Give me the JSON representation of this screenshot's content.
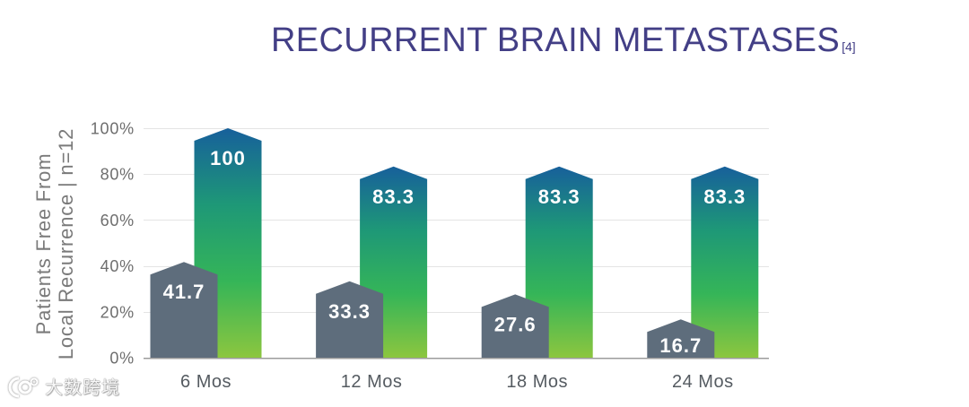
{
  "chart_data": {
    "type": "bar",
    "title": "RECURRENT BRAIN METASTASES",
    "title_citation": "[4]",
    "ylabel": [
      "Patients Free From",
      "Local Recurrence | n=12"
    ],
    "categories": [
      "6 Mos",
      "12 Mos",
      "18 Mos",
      "24 Mos"
    ],
    "series": [
      {
        "values": [
          41.7,
          33.3,
          27.6,
          16.7
        ],
        "color": "#5e6d7c"
      },
      {
        "values": [
          100,
          83.3,
          83.3,
          83.3
        ],
        "gradient": [
          "#17609b",
          "#1e9877",
          "#35b558",
          "#8cc63f"
        ]
      }
    ],
    "ylim": [
      0,
      100
    ],
    "yticks": [
      0,
      20,
      40,
      60,
      80,
      100
    ],
    "ytick_labels": [
      "0%",
      "20%",
      "40%",
      "60%",
      "80%",
      "100%"
    ],
    "grid": true
  },
  "theme": {
    "title_color": "#433f86"
  },
  "watermark": {
    "text": "大数跨境"
  }
}
